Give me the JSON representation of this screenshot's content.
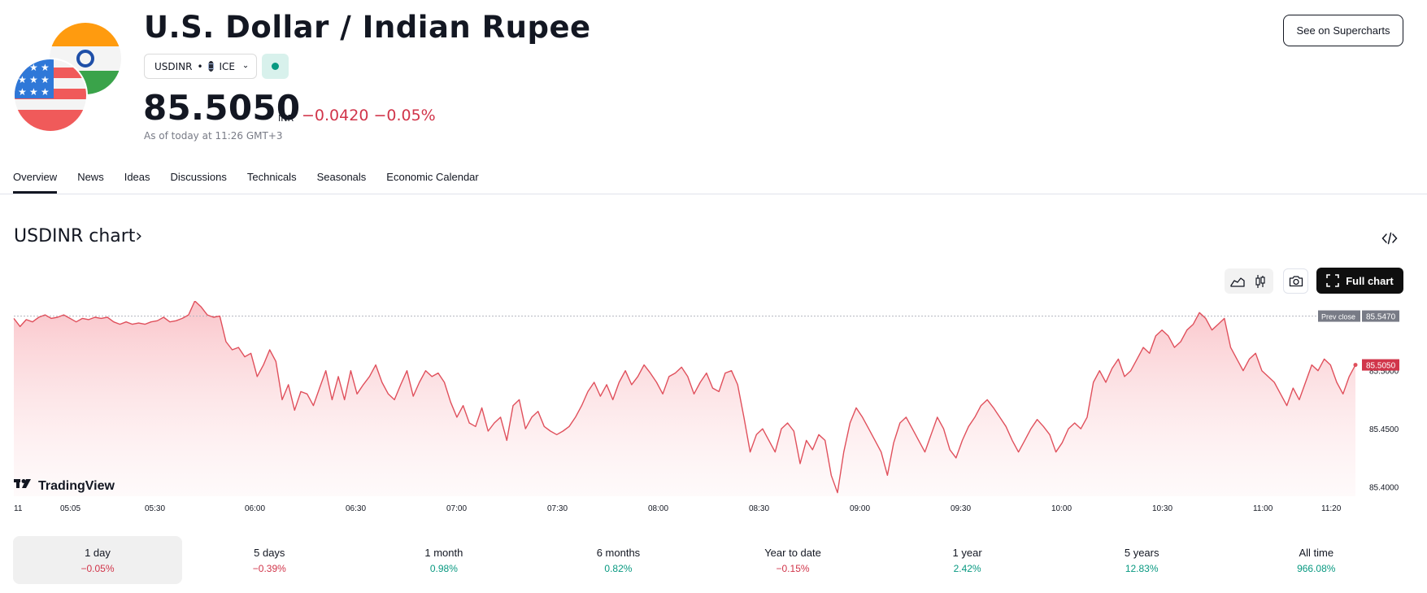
{
  "header": {
    "title": "U.S. Dollar / Indian Rupee",
    "symbol": "USDINR",
    "exchange": "ICE",
    "price": "85.5050",
    "currency": "INR",
    "change": "−0.0420 −0.05%",
    "as_of": "As of today at 11:26 GMT+3",
    "supercharts_label": "See on Supercharts"
  },
  "tabs": [
    "Overview",
    "News",
    "Ideas",
    "Discussions",
    "Technicals",
    "Seasonals",
    "Economic Calendar"
  ],
  "chart_section": {
    "title": "USDINR chart›",
    "full_chart_label": "Full chart",
    "watermark": "TradingView"
  },
  "colors": {
    "negative": "#d1354a",
    "positive": "#089981",
    "line": "#e0505c",
    "fill": "#fbd7da"
  },
  "icons": [
    "usd-inr-flag-icon",
    "ice-logo-icon",
    "chevron-down-icon",
    "code-embed-icon",
    "area-chart-icon",
    "candles-icon",
    "camera-icon",
    "fullscreen-icon",
    "tradingview-logo-icon"
  ],
  "chart_data": {
    "type": "line",
    "x_ticks": [
      "11",
      "05:05",
      "05:30",
      "06:00",
      "06:30",
      "07:00",
      "07:30",
      "08:00",
      "08:30",
      "09:00",
      "09:30",
      "10:00",
      "10:30",
      "11:00",
      "11:20"
    ],
    "y_ticks": [
      "85.4000",
      "85.4500",
      "85.5000"
    ],
    "ylim": [
      85.392,
      85.56
    ],
    "prev_close_label": "Prev close",
    "prev_close": "85.5470",
    "last_label": "85.5050",
    "last": 85.505,
    "y": [
      85.545,
      85.538,
      85.544,
      85.542,
      85.546,
      85.548,
      85.545,
      85.546,
      85.548,
      85.545,
      85.542,
      85.545,
      85.544,
      85.546,
      85.545,
      85.546,
      85.542,
      85.54,
      85.542,
      85.54,
      85.541,
      85.54,
      85.542,
      85.543,
      85.546,
      85.542,
      85.543,
      85.545,
      85.548,
      85.56,
      85.555,
      85.548,
      85.546,
      85.547,
      85.525,
      85.518,
      85.52,
      85.512,
      85.515,
      85.495,
      85.505,
      85.518,
      85.508,
      85.475,
      85.488,
      85.466,
      85.482,
      85.48,
      85.47,
      85.485,
      85.5,
      85.475,
      85.495,
      85.475,
      85.5,
      85.48,
      85.488,
      85.495,
      85.505,
      85.49,
      85.48,
      85.475,
      85.488,
      85.5,
      85.478,
      85.49,
      85.5,
      85.495,
      85.498,
      85.49,
      85.473,
      85.46,
      85.47,
      85.455,
      85.452,
      85.468,
      85.448,
      85.455,
      85.46,
      85.44,
      85.47,
      85.475,
      85.45,
      85.46,
      85.465,
      85.452,
      85.448,
      85.445,
      85.448,
      85.452,
      85.46,
      85.47,
      85.482,
      85.49,
      85.478,
      85.488,
      85.475,
      85.49,
      85.5,
      85.488,
      85.495,
      85.505,
      85.498,
      85.49,
      85.48,
      85.495,
      85.498,
      85.503,
      85.495,
      85.48,
      85.49,
      85.498,
      85.485,
      85.482,
      85.498,
      85.5,
      85.488,
      85.46,
      85.43,
      85.445,
      85.45,
      85.44,
      85.43,
      85.45,
      85.455,
      85.448,
      85.42,
      85.44,
      85.432,
      85.445,
      85.44,
      85.41,
      85.395,
      85.43,
      85.455,
      85.468,
      85.46,
      85.45,
      85.44,
      85.43,
      85.41,
      85.438,
      85.455,
      85.46,
      85.45,
      85.44,
      85.43,
      85.445,
      85.46,
      85.45,
      85.432,
      85.425,
      85.44,
      85.452,
      85.46,
      85.47,
      85.475,
      85.468,
      85.46,
      85.452,
      85.44,
      85.43,
      85.44,
      85.45,
      85.458,
      85.452,
      85.445,
      85.43,
      85.438,
      85.45,
      85.455,
      85.45,
      85.46,
      85.49,
      85.5,
      85.49,
      85.502,
      85.51,
      85.495,
      85.5,
      85.51,
      85.52,
      85.515,
      85.53,
      85.535,
      85.53,
      85.52,
      85.525,
      85.535,
      85.54,
      85.55,
      85.545,
      85.535,
      85.54,
      85.545,
      85.52,
      85.51,
      85.5,
      85.51,
      85.515,
      85.5,
      85.495,
      85.49,
      85.48,
      85.47,
      85.485,
      85.475,
      85.49,
      85.505,
      85.5,
      85.51,
      85.505,
      85.49,
      85.48,
      85.495,
      85.505
    ]
  },
  "ranges": [
    {
      "label": "1 day",
      "value": "−0.05%",
      "sign": "neg"
    },
    {
      "label": "5 days",
      "value": "−0.39%",
      "sign": "neg"
    },
    {
      "label": "1 month",
      "value": "0.98%",
      "sign": "pos"
    },
    {
      "label": "6 months",
      "value": "0.82%",
      "sign": "pos"
    },
    {
      "label": "Year to date",
      "value": "−0.15%",
      "sign": "neg"
    },
    {
      "label": "1 year",
      "value": "2.42%",
      "sign": "pos"
    },
    {
      "label": "5 years",
      "value": "12.83%",
      "sign": "pos"
    },
    {
      "label": "All time",
      "value": "966.08%",
      "sign": "pos"
    }
  ]
}
